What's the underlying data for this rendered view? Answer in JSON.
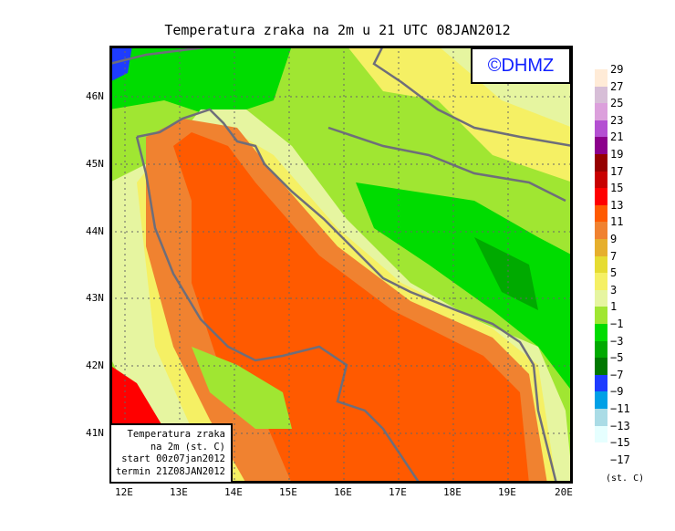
{
  "title": "Temperatura zraka na 2m u 21 UTC 08JAN2012",
  "logo": "©DHMZ",
  "info": [
    "Temperatura zraka",
    "na 2m (st. C)",
    "start 00z07jan2012",
    "termin 21Z08JAN2012"
  ],
  "lon_ticks": [
    "12E",
    "13E",
    "14E",
    "15E",
    "16E",
    "17E",
    "18E",
    "19E",
    "20E"
  ],
  "lat_ticks": [
    "46N",
    "45N",
    "44N",
    "43N",
    "42N",
    "41N"
  ],
  "legend": {
    "unit": "(st. C)",
    "labels": [
      "29",
      "27",
      "25",
      "23",
      "21",
      "19",
      "17",
      "15",
      "13",
      "11",
      "9",
      "7",
      "5",
      "3",
      "1",
      "−1",
      "−3",
      "−5",
      "−7",
      "−9",
      "−11",
      "−13",
      "−15",
      "−17"
    ],
    "colors": [
      "#ffebd7",
      "#d7bed7",
      "#dca0dc",
      "#b450d2",
      "#8c008c",
      "#960000",
      "#c80000",
      "#ff0000",
      "#ff5a00",
      "#f08230",
      "#e6af2d",
      "#e6dc32",
      "#f5f064",
      "#e6f5a0",
      "#a0e632",
      "#00dc00",
      "#00aa00",
      "#007800",
      "#1e3cff",
      "#00a0e6",
      "#aadce6",
      "#e6ffff"
    ]
  }
}
